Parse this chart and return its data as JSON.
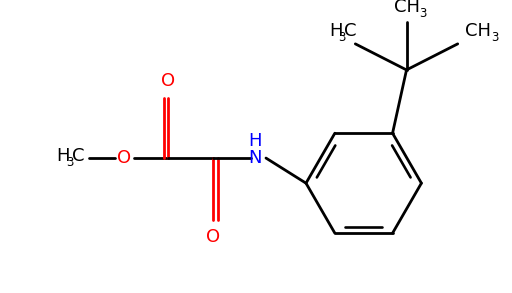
{
  "bg_color": "#ffffff",
  "line_color": "#000000",
  "red_color": "#ff0000",
  "blue_color": "#0000ff",
  "line_width": 1.8,
  "figsize": [
    5.12,
    2.93
  ],
  "dpi": 100,
  "xlim": [
    0,
    5.12
  ],
  "ylim": [
    0,
    2.93
  ]
}
